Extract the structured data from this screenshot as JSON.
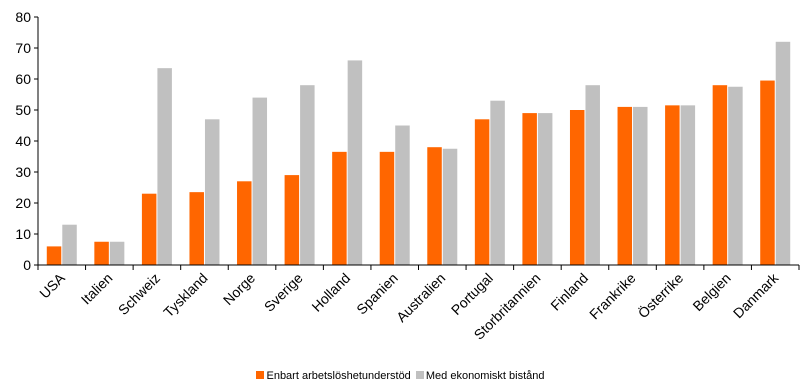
{
  "chart_data": {
    "type": "bar",
    "title": "",
    "xlabel": "",
    "ylabel": "",
    "ylim": [
      0,
      80
    ],
    "yticks": [
      0,
      10,
      20,
      30,
      40,
      50,
      60,
      70,
      80
    ],
    "grid": false,
    "legend_position": "bottom",
    "categories": [
      "USA",
      "Italien",
      "Schweiz",
      "Tyskland",
      "Norge",
      "Sverige",
      "Holland",
      "Spanien",
      "Australien",
      "Portugal",
      "Storbritannien",
      "Finland",
      "Frankrike",
      "Österrike",
      "Belgien",
      "Danmark"
    ],
    "series": [
      {
        "name": "Enbart arbetslöshetunderstöd",
        "color": "#ff6600",
        "values": [
          6,
          7.5,
          23,
          23.5,
          27,
          29,
          36.5,
          36.5,
          38,
          47,
          49,
          50,
          51,
          51.5,
          58,
          59.5
        ]
      },
      {
        "name": "Med ekonomiskt bistånd",
        "color": "#c0c0c0",
        "values": [
          13,
          7.5,
          63.5,
          47,
          54,
          58,
          66,
          45,
          37.5,
          53,
          49,
          58,
          51,
          51.5,
          57.5,
          72
        ]
      }
    ]
  }
}
